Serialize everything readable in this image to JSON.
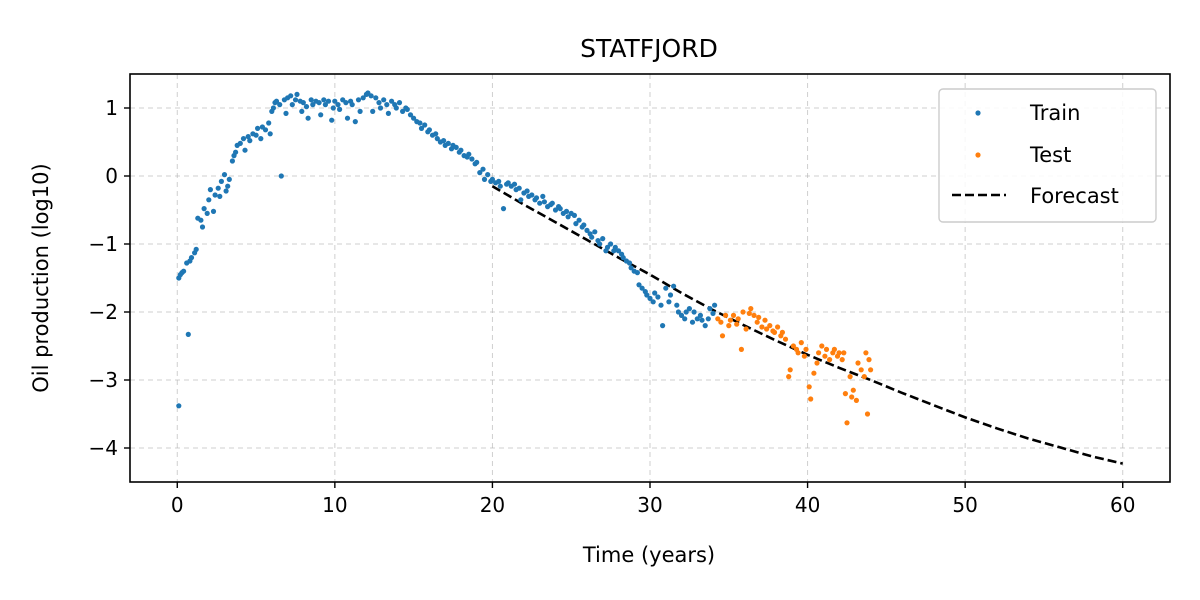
{
  "chart_data": {
    "type": "scatter",
    "title": "STATFJORD",
    "xlabel": "Time (years)",
    "ylabel": "Oil production (log10)",
    "xlim": [
      -3,
      63
    ],
    "ylim": [
      -4.5,
      1.5
    ],
    "xticks": [
      0,
      10,
      20,
      30,
      40,
      50,
      60
    ],
    "yticks": [
      1,
      0,
      -1,
      -2,
      -3,
      -4
    ],
    "xtick_labels": [
      "0",
      "10",
      "20",
      "30",
      "40",
      "50",
      "60"
    ],
    "ytick_labels": [
      "1",
      "0",
      "−1",
      "−2",
      "−3",
      "−4"
    ],
    "grid": true,
    "legend_position": "top-right",
    "series": [
      {
        "name": "Train",
        "kind": "scatter",
        "color": "#1f77b4",
        "points": [
          [
            0.1,
            -3.38
          ],
          [
            0.1,
            -1.5
          ],
          [
            0.2,
            -1.45
          ],
          [
            0.3,
            -1.42
          ],
          [
            0.4,
            -1.4
          ],
          [
            0.6,
            -1.28
          ],
          [
            0.7,
            -2.33
          ],
          [
            0.8,
            -1.25
          ],
          [
            0.9,
            -1.2
          ],
          [
            1.1,
            -1.13
          ],
          [
            1.2,
            -1.08
          ],
          [
            1.3,
            -0.62
          ],
          [
            1.5,
            -0.65
          ],
          [
            1.6,
            -0.75
          ],
          [
            1.7,
            -0.48
          ],
          [
            1.9,
            -0.55
          ],
          [
            2.0,
            -0.35
          ],
          [
            2.1,
            -0.2
          ],
          [
            2.3,
            -0.52
          ],
          [
            2.4,
            -0.28
          ],
          [
            2.6,
            -0.18
          ],
          [
            2.7,
            -0.3
          ],
          [
            2.8,
            -0.08
          ],
          [
            3.0,
            0.02
          ],
          [
            3.1,
            -0.22
          ],
          [
            3.2,
            -0.15
          ],
          [
            3.3,
            -0.05
          ],
          [
            3.5,
            0.22
          ],
          [
            3.6,
            0.3
          ],
          [
            3.7,
            0.35
          ],
          [
            3.8,
            0.45
          ],
          [
            4.0,
            0.48
          ],
          [
            4.2,
            0.55
          ],
          [
            4.3,
            0.38
          ],
          [
            4.5,
            0.58
          ],
          [
            4.6,
            0.52
          ],
          [
            4.8,
            0.62
          ],
          [
            5.0,
            0.6
          ],
          [
            5.1,
            0.7
          ],
          [
            5.3,
            0.55
          ],
          [
            5.4,
            0.72
          ],
          [
            5.6,
            0.68
          ],
          [
            5.8,
            0.78
          ],
          [
            5.9,
            0.62
          ],
          [
            6.0,
            0.95
          ],
          [
            6.1,
            1.0
          ],
          [
            6.2,
            1.08
          ],
          [
            6.3,
            1.1
          ],
          [
            6.5,
            1.05
          ],
          [
            6.6,
            0.0
          ],
          [
            6.8,
            1.12
          ],
          [
            6.9,
            0.92
          ],
          [
            7.0,
            1.15
          ],
          [
            7.2,
            1.18
          ],
          [
            7.3,
            1.05
          ],
          [
            7.5,
            1.12
          ],
          [
            7.6,
            1.2
          ],
          [
            7.8,
            1.1
          ],
          [
            7.9,
            0.95
          ],
          [
            8.0,
            1.08
          ],
          [
            8.2,
            1.02
          ],
          [
            8.3,
            0.85
          ],
          [
            8.5,
            1.12
          ],
          [
            8.6,
            1.05
          ],
          [
            8.8,
            1.1
          ],
          [
            9.0,
            1.08
          ],
          [
            9.1,
            0.9
          ],
          [
            9.3,
            1.12
          ],
          [
            9.4,
            1.05
          ],
          [
            9.6,
            1.1
          ],
          [
            9.8,
            0.82
          ],
          [
            9.9,
            1.0
          ],
          [
            10.0,
            1.1
          ],
          [
            10.2,
            1.05
          ],
          [
            10.3,
            0.98
          ],
          [
            10.5,
            1.12
          ],
          [
            10.7,
            1.08
          ],
          [
            10.8,
            0.85
          ],
          [
            11.0,
            1.1
          ],
          [
            11.1,
            1.05
          ],
          [
            11.3,
            0.8
          ],
          [
            11.5,
            1.12
          ],
          [
            11.6,
            0.95
          ],
          [
            11.8,
            1.15
          ],
          [
            12.0,
            1.2
          ],
          [
            12.1,
            1.22
          ],
          [
            12.3,
            1.18
          ],
          [
            12.4,
            0.95
          ],
          [
            12.6,
            1.15
          ],
          [
            12.8,
            1.08
          ],
          [
            12.9,
            1.0
          ],
          [
            13.1,
            1.12
          ],
          [
            13.3,
            1.05
          ],
          [
            13.4,
            0.92
          ],
          [
            13.6,
            1.1
          ],
          [
            13.8,
            1.05
          ],
          [
            13.9,
            1.0
          ],
          [
            14.1,
            1.08
          ],
          [
            14.3,
            0.95
          ],
          [
            14.5,
            1.0
          ],
          [
            14.6,
            0.98
          ],
          [
            14.8,
            0.9
          ],
          [
            15.0,
            0.85
          ],
          [
            15.2,
            0.8
          ],
          [
            15.4,
            0.78
          ],
          [
            15.5,
            0.7
          ],
          [
            15.7,
            0.75
          ],
          [
            15.9,
            0.65
          ],
          [
            16.0,
            0.68
          ],
          [
            16.2,
            0.6
          ],
          [
            16.4,
            0.62
          ],
          [
            16.5,
            0.55
          ],
          [
            16.7,
            0.5
          ],
          [
            16.9,
            0.52
          ],
          [
            17.0,
            0.45
          ],
          [
            17.2,
            0.48
          ],
          [
            17.4,
            0.4
          ],
          [
            17.5,
            0.45
          ],
          [
            17.7,
            0.42
          ],
          [
            17.9,
            0.35
          ],
          [
            18.0,
            0.38
          ],
          [
            18.2,
            0.3
          ],
          [
            18.4,
            0.28
          ],
          [
            18.5,
            0.32
          ],
          [
            18.7,
            0.25
          ],
          [
            18.9,
            0.18
          ],
          [
            19.0,
            0.2
          ],
          [
            19.2,
            0.05
          ],
          [
            19.4,
            0.1
          ],
          [
            19.5,
            -0.05
          ],
          [
            19.7,
            0.02
          ],
          [
            19.9,
            -0.08
          ],
          [
            20.0,
            -0.05
          ],
          [
            20.2,
            -0.1
          ],
          [
            20.4,
            -0.08
          ],
          [
            20.5,
            -0.15
          ],
          [
            20.7,
            -0.48
          ],
          [
            20.9,
            -0.12
          ],
          [
            21.0,
            -0.1
          ],
          [
            21.2,
            -0.15
          ],
          [
            21.4,
            -0.12
          ],
          [
            21.5,
            -0.2
          ],
          [
            21.7,
            -0.18
          ],
          [
            21.8,
            -0.35
          ],
          [
            22.0,
            -0.25
          ],
          [
            22.2,
            -0.22
          ],
          [
            22.3,
            -0.3
          ],
          [
            22.5,
            -0.28
          ],
          [
            22.7,
            -0.35
          ],
          [
            22.8,
            -0.32
          ],
          [
            23.0,
            -0.4
          ],
          [
            23.2,
            -0.3
          ],
          [
            23.3,
            -0.38
          ],
          [
            23.5,
            -0.45
          ],
          [
            23.7,
            -0.42
          ],
          [
            23.8,
            -0.4
          ],
          [
            24.0,
            -0.5
          ],
          [
            24.2,
            -0.45
          ],
          [
            24.3,
            -0.48
          ],
          [
            24.5,
            -0.55
          ],
          [
            24.7,
            -0.52
          ],
          [
            24.8,
            -0.6
          ],
          [
            25.0,
            -0.55
          ],
          [
            25.2,
            -0.58
          ],
          [
            25.3,
            -0.7
          ],
          [
            25.5,
            -0.65
          ],
          [
            25.7,
            -0.75
          ],
          [
            25.8,
            -0.72
          ],
          [
            26.0,
            -0.8
          ],
          [
            26.2,
            -0.85
          ],
          [
            26.3,
            -0.9
          ],
          [
            26.5,
            -0.82
          ],
          [
            26.7,
            -0.95
          ],
          [
            26.8,
            -1.0
          ],
          [
            27.0,
            -0.92
          ],
          [
            27.2,
            -1.1
          ],
          [
            27.3,
            -1.05
          ],
          [
            27.5,
            -1.0
          ],
          [
            27.7,
            -1.1
          ],
          [
            27.8,
            -1.05
          ],
          [
            28.0,
            -1.1
          ],
          [
            28.2,
            -1.15
          ],
          [
            28.3,
            -1.2
          ],
          [
            28.5,
            -1.25
          ],
          [
            28.7,
            -1.28
          ],
          [
            28.8,
            -1.35
          ],
          [
            29.0,
            -1.4
          ],
          [
            29.2,
            -1.42
          ],
          [
            29.3,
            -1.6
          ],
          [
            29.5,
            -1.65
          ],
          [
            29.7,
            -1.7
          ],
          [
            29.8,
            -1.75
          ],
          [
            30.0,
            -1.8
          ],
          [
            30.2,
            -1.85
          ],
          [
            30.3,
            -1.72
          ],
          [
            30.5,
            -1.78
          ],
          [
            30.7,
            -1.9
          ],
          [
            30.8,
            -2.2
          ],
          [
            31.0,
            -1.65
          ],
          [
            31.2,
            -1.85
          ],
          [
            31.3,
            -1.75
          ],
          [
            31.5,
            -1.62
          ],
          [
            31.7,
            -1.9
          ],
          [
            31.8,
            -2.0
          ],
          [
            32.0,
            -2.05
          ],
          [
            32.2,
            -2.1
          ],
          [
            32.3,
            -2.0
          ],
          [
            32.5,
            -1.95
          ],
          [
            32.7,
            -2.15
          ],
          [
            32.8,
            -2.0
          ],
          [
            33.0,
            -2.1
          ],
          [
            33.2,
            -2.05
          ],
          [
            33.3,
            -2.12
          ],
          [
            33.5,
            -2.2
          ],
          [
            33.7,
            -2.1
          ],
          [
            33.8,
            -1.95
          ],
          [
            34.0,
            -2.02
          ],
          [
            34.1,
            -1.9
          ]
        ]
      },
      {
        "name": "Test",
        "kind": "scatter",
        "color": "#ff7f0e",
        "points": [
          [
            34.3,
            -2.1
          ],
          [
            34.5,
            -2.15
          ],
          [
            34.6,
            -2.35
          ],
          [
            34.8,
            -2.05
          ],
          [
            35.0,
            -2.2
          ],
          [
            35.1,
            -2.12
          ],
          [
            35.3,
            -2.05
          ],
          [
            35.5,
            -2.18
          ],
          [
            35.6,
            -2.1
          ],
          [
            35.8,
            -2.55
          ],
          [
            35.9,
            -2.0
          ],
          [
            36.1,
            -2.25
          ],
          [
            36.3,
            -2.02
          ],
          [
            36.4,
            -1.95
          ],
          [
            36.6,
            -2.05
          ],
          [
            36.8,
            -2.15
          ],
          [
            36.9,
            -2.08
          ],
          [
            37.1,
            -2.22
          ],
          [
            37.3,
            -2.12
          ],
          [
            37.4,
            -2.25
          ],
          [
            37.6,
            -2.2
          ],
          [
            37.8,
            -2.28
          ],
          [
            37.9,
            -2.3
          ],
          [
            38.1,
            -2.22
          ],
          [
            38.3,
            -2.35
          ],
          [
            38.4,
            -2.3
          ],
          [
            38.6,
            -2.4
          ],
          [
            38.8,
            -2.95
          ],
          [
            38.9,
            -2.85
          ],
          [
            39.1,
            -2.5
          ],
          [
            39.3,
            -2.55
          ],
          [
            39.4,
            -2.6
          ],
          [
            39.6,
            -2.45
          ],
          [
            39.8,
            -2.65
          ],
          [
            39.9,
            -2.55
          ],
          [
            40.1,
            -3.1
          ],
          [
            40.2,
            -3.28
          ],
          [
            40.4,
            -2.9
          ],
          [
            40.6,
            -2.75
          ],
          [
            40.7,
            -2.6
          ],
          [
            40.9,
            -2.5
          ],
          [
            41.1,
            -2.65
          ],
          [
            41.2,
            -2.55
          ],
          [
            41.4,
            -2.7
          ],
          [
            41.6,
            -2.6
          ],
          [
            41.7,
            -2.55
          ],
          [
            41.9,
            -2.65
          ],
          [
            42.0,
            -2.6
          ],
          [
            42.2,
            -2.7
          ],
          [
            42.3,
            -2.6
          ],
          [
            42.4,
            -3.2
          ],
          [
            42.5,
            -3.63
          ],
          [
            42.7,
            -2.95
          ],
          [
            42.8,
            -3.25
          ],
          [
            42.9,
            -3.15
          ],
          [
            43.1,
            -3.3
          ],
          [
            43.2,
            -2.75
          ],
          [
            43.4,
            -2.85
          ],
          [
            43.6,
            -2.95
          ],
          [
            43.7,
            -2.6
          ],
          [
            43.8,
            -3.5
          ],
          [
            43.9,
            -2.7
          ],
          [
            44.0,
            -2.85
          ]
        ]
      },
      {
        "name": "Forecast",
        "kind": "line",
        "style": "dashed",
        "color": "#000000",
        "points": [
          [
            20,
            -0.15
          ],
          [
            22,
            -0.42
          ],
          [
            24,
            -0.68
          ],
          [
            26,
            -0.94
          ],
          [
            28,
            -1.2
          ],
          [
            30,
            -1.45
          ],
          [
            32,
            -1.72
          ],
          [
            34,
            -1.97
          ],
          [
            36,
            -2.2
          ],
          [
            38,
            -2.42
          ],
          [
            40,
            -2.63
          ],
          [
            42,
            -2.82
          ],
          [
            44,
            -3.0
          ],
          [
            46,
            -3.19
          ],
          [
            48,
            -3.37
          ],
          [
            50,
            -3.55
          ],
          [
            52,
            -3.71
          ],
          [
            54,
            -3.86
          ],
          [
            56,
            -3.99
          ],
          [
            58,
            -4.12
          ],
          [
            60,
            -4.23
          ]
        ]
      }
    ]
  }
}
